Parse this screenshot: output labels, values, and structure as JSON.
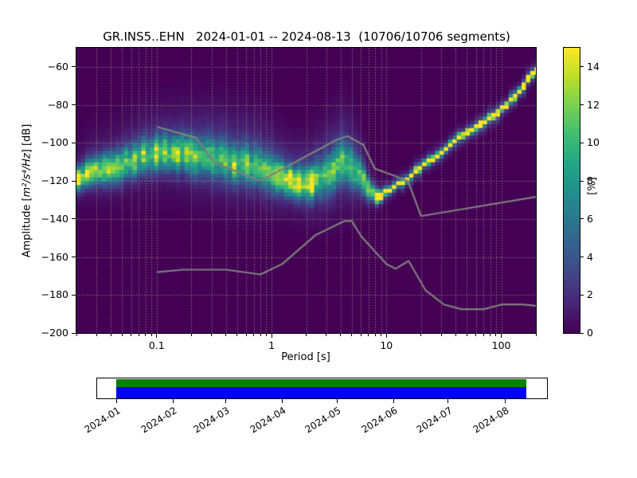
{
  "title": "GR.INS5..EHN   2024-01-01 -- 2024-08-13  (10706/10706 segments)",
  "axes": {
    "xlabel": "Period [s]",
    "ylabel_prefix": "Amplitude [",
    "ylabel_math": "m²/s⁴/Hz",
    "ylabel_suffix": "] [dB]",
    "xticks": [
      {
        "value": 0.1,
        "label": "0.1"
      },
      {
        "value": 1,
        "label": "1"
      },
      {
        "value": 10,
        "label": "10"
      },
      {
        "value": 100,
        "label": "100"
      }
    ],
    "yticks": [
      {
        "value": -60,
        "label": "−60"
      },
      {
        "value": -80,
        "label": "−80"
      },
      {
        "value": -100,
        "label": "−100"
      },
      {
        "value": -120,
        "label": "−120"
      },
      {
        "value": -140,
        "label": "−140"
      },
      {
        "value": -160,
        "label": "−160"
      },
      {
        "value": -180,
        "label": "−180"
      },
      {
        "value": -200,
        "label": "−200"
      }
    ]
  },
  "colorbar": {
    "label": "[%]",
    "colormap": "viridis",
    "vmin": 0,
    "vmax": 15,
    "ticks": [
      {
        "value": 0,
        "label": "0"
      },
      {
        "value": 2,
        "label": "2"
      },
      {
        "value": 4,
        "label": "4"
      },
      {
        "value": 6,
        "label": "6"
      },
      {
        "value": 8,
        "label": "8"
      },
      {
        "value": 10,
        "label": "10"
      },
      {
        "value": 12,
        "label": "12"
      },
      {
        "value": 14,
        "label": "14"
      }
    ]
  },
  "chart_data": {
    "type": "heatmap",
    "title": "GR.INS5..EHN 2024-01-01 -- 2024-08-13 (10706/10706 segments)",
    "xlabel": "Period [s]",
    "ylabel": "Amplitude [m2/s4/Hz] [dB]",
    "x_scale": "log",
    "xlim": [
      0.02,
      200
    ],
    "ylim": [
      -200,
      -50
    ],
    "value_unit": "percent_probability",
    "clim": [
      0,
      15
    ],
    "colormap": "viridis",
    "grid": {
      "x_major": [
        0.1,
        1,
        10,
        100
      ],
      "y_major_step": 20,
      "style": "dotted"
    },
    "period_bin_octaves": 0.125,
    "db_bin": 2,
    "noise_band": [
      [
        0.02,
        -118.0,
        4.0,
        13.0
      ],
      [
        0.028,
        -115.5,
        5.0,
        9.5
      ],
      [
        0.05,
        -111.0,
        5.5,
        9.0
      ],
      [
        0.08,
        -107.0,
        6.0,
        9.5
      ],
      [
        0.14,
        -104.5,
        6.0,
        10.0
      ],
      [
        0.22,
        -106.5,
        6.5,
        9.5
      ],
      [
        0.4,
        -109.0,
        6.5,
        8.5
      ],
      [
        0.7,
        -112.0,
        6.5,
        8.0
      ],
      [
        1.0,
        -116.0,
        6.0,
        9.0
      ],
      [
        1.5,
        -120.5,
        5.0,
        13.0
      ],
      [
        2.1,
        -121.0,
        5.5,
        12.0
      ],
      [
        3.0,
        -117.5,
        6.5,
        8.0
      ],
      [
        4.2,
        -110.0,
        7.0,
        8.5
      ],
      [
        5.5,
        -115.0,
        6.0,
        7.0
      ],
      [
        6.7,
        -123.0,
        4.0,
        9.0
      ],
      [
        8.0,
        -127.0,
        2.5,
        13.0
      ],
      [
        9.2,
        -127.5,
        1.8,
        14.0
      ]
    ],
    "noise_band_max_period": 9.6,
    "halo_peak": [
      [
        0.02,
        1.2
      ],
      [
        0.1,
        1.8
      ],
      [
        0.3,
        2.4
      ],
      [
        0.8,
        2.4
      ],
      [
        3.0,
        2.6
      ],
      [
        6.0,
        2.2
      ],
      [
        8.5,
        1.0
      ],
      [
        9.5,
        0.0
      ]
    ],
    "long_period_line": [
      [
        8.2,
        -127.6
      ],
      [
        9,
        -127
      ],
      [
        11,
        -124
      ],
      [
        15,
        -118.5
      ],
      [
        24,
        -109
      ],
      [
        46,
        -96
      ],
      [
        87,
        -85
      ],
      [
        120,
        -78
      ],
      [
        164,
        -68
      ],
      [
        200,
        -62
      ]
    ],
    "line_core": {
      "sigma_db": 1.1,
      "peak_percent": 15.5
    },
    "line_fringe": {
      "sigma_db": 3.0,
      "peak_percent": 4.0
    },
    "model_line_color": "#7f7f7f",
    "nhnm": [
      [
        0.1,
        -91.5
      ],
      [
        0.22,
        -97.4
      ],
      [
        0.32,
        -110.5
      ],
      [
        0.8,
        -120.0
      ],
      [
        3.8,
        -98.0
      ],
      [
        4.6,
        -96.5
      ],
      [
        6.3,
        -101.0
      ],
      [
        7.9,
        -113.5
      ],
      [
        15.4,
        -120.0
      ],
      [
        20.0,
        -138.5
      ],
      [
        200.0,
        -128.4
      ]
    ],
    "nlnm": [
      [
        0.1,
        -168.0
      ],
      [
        0.17,
        -166.7
      ],
      [
        0.4,
        -166.7
      ],
      [
        0.8,
        -169.2
      ],
      [
        1.24,
        -163.7
      ],
      [
        2.4,
        -148.6
      ],
      [
        4.3,
        -141.1
      ],
      [
        5.0,
        -141.1
      ],
      [
        6.0,
        -149.0
      ],
      [
        10.0,
        -163.8
      ],
      [
        12.0,
        -166.2
      ],
      [
        15.6,
        -162.1
      ],
      [
        21.9,
        -177.5
      ],
      [
        31.6,
        -185.0
      ],
      [
        45.0,
        -187.5
      ],
      [
        70.0,
        -187.5
      ],
      [
        101.0,
        -185.0
      ],
      [
        154.0,
        -185.0
      ],
      [
        200.0,
        -185.7
      ]
    ]
  },
  "coverage": {
    "span_days": [
      0,
      225
    ],
    "green_color": "#008000",
    "blue_color": "#0000ff",
    "month_ticks": [
      {
        "day": 0,
        "label": "2024-01"
      },
      {
        "day": 31,
        "label": "2024-02"
      },
      {
        "day": 60,
        "label": "2024-03"
      },
      {
        "day": 91,
        "label": "2024-04"
      },
      {
        "day": 121,
        "label": "2024-05"
      },
      {
        "day": 152,
        "label": "2024-06"
      },
      {
        "day": 182,
        "label": "2024-07"
      },
      {
        "day": 213,
        "label": "2024-08"
      }
    ]
  },
  "colors": {
    "background": "#ffffff",
    "heatmap_background": "#440154",
    "grid_dots": "#a3a393"
  }
}
